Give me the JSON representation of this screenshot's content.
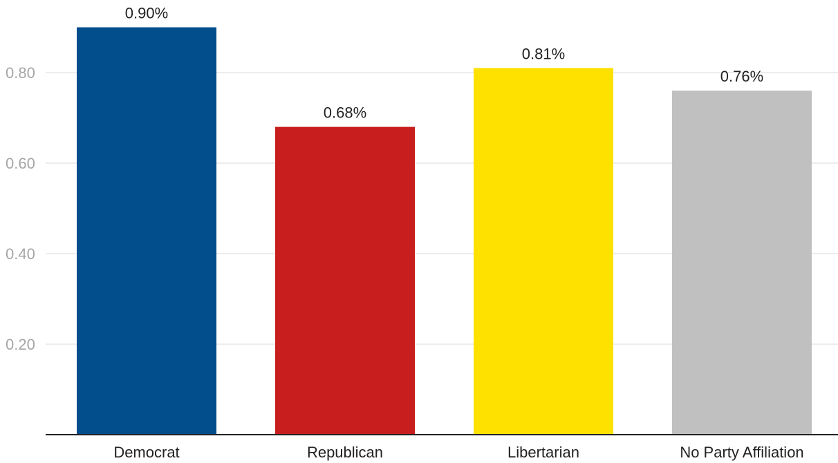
{
  "chart_data": {
    "type": "bar",
    "categories": [
      "Democrat",
      "Republican",
      "Libertarian",
      "No Party Affiliation"
    ],
    "values": [
      0.9,
      0.68,
      0.81,
      0.76
    ],
    "data_labels": [
      "0.90%",
      "0.68%",
      "0.81%",
      "0.76%"
    ],
    "colors": [
      "#024d8c",
      "#c81e1e",
      "#ffe100",
      "#c0c0c0"
    ],
    "y_ticks": [
      0.2,
      0.4,
      0.6,
      0.8
    ],
    "y_tick_labels": [
      "0.20",
      "0.40",
      "0.60",
      "0.80"
    ],
    "ylim": [
      0,
      0.9
    ],
    "grid": true,
    "legend": "none",
    "title": "",
    "xlabel": "",
    "ylabel": ""
  }
}
